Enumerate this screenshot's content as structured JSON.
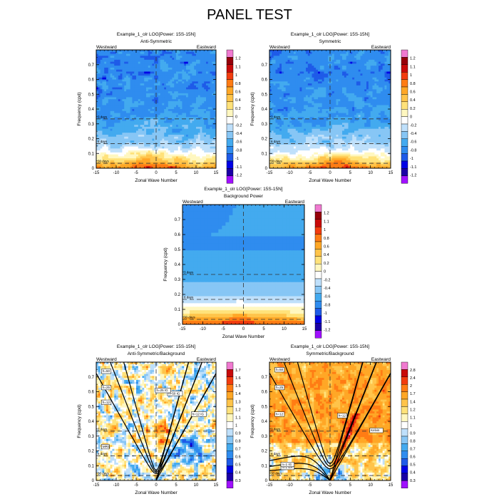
{
  "title": "PANEL TEST",
  "palettes": {
    "power": [
      "#a010ff",
      "#1a00a6",
      "#0000e6",
      "#1e5be8",
      "#2f8cef",
      "#43aaef",
      "#87c6f5",
      "#bfe0fb",
      "#ffffff",
      "#fff7c0",
      "#ffe27a",
      "#ffc44a",
      "#ffa726",
      "#ff7c14",
      "#f23c0f",
      "#c80a0a",
      "#96000a",
      "#f07ad0"
    ],
    "ratio1": [
      "#a010ff",
      "#1a00a6",
      "#0000e6",
      "#1e5be8",
      "#2f8cef",
      "#43aaef",
      "#87c6f5",
      "#bfe0fb",
      "#ffffff",
      "#fff7c0",
      "#ffe27a",
      "#ffc44a",
      "#ffa726",
      "#ff7c14",
      "#f23c0f",
      "#c80a0a",
      "#f07ad0"
    ],
    "ratio2": [
      "#a010ff",
      "#1a00a6",
      "#0000e6",
      "#1e5be8",
      "#2f8cef",
      "#43aaef",
      "#87c6f5",
      "#bfe0fb",
      "#ffffff",
      "#fff7c0",
      "#ffe27a",
      "#ffc44a",
      "#ffa726",
      "#ff7c14",
      "#f23c0f",
      "#c80a0a",
      "#f07ad0"
    ]
  },
  "chart_data": [
    {
      "type": "heatmap",
      "title": "Example_1_olr LOG[Power: 15S-15N]",
      "subtitle": "Anti-Symmetric",
      "left_label": "Westward",
      "right_label": "Eastward",
      "xlabel": "Zonal Wave Number",
      "ylabel": "Frequency (cpd)",
      "xlim": [
        -15,
        15
      ],
      "ylim": [
        0,
        0.8
      ],
      "xticks": [
        "-15",
        "-10",
        "-5",
        "0",
        "5",
        "10",
        "15"
      ],
      "yticks": [
        "0",
        "0.1",
        "0.2",
        "0.3",
        "0.4",
        "0.5",
        "0.6",
        "0.7"
      ],
      "period_labels": [
        "3 days",
        "6 days",
        "30 days"
      ],
      "colorbar": [
        "1.2",
        "1.1",
        "1",
        "0.8",
        "0.6",
        "0.4",
        "0.2",
        "0",
        "-0.2",
        "-0.4",
        "-0.6",
        "-0.8",
        "-1",
        "-1.1",
        "-1.2"
      ],
      "palette": "power",
      "dispersion_labels": []
    },
    {
      "type": "heatmap",
      "title": "Example_1_olr LOG[Power: 15S-15N]",
      "subtitle": "Symmetric",
      "left_label": "Westward",
      "right_label": "Eastward",
      "xlabel": "Zonal Wave Number",
      "ylabel": "Frequency (cpd)",
      "xlim": [
        -15,
        15
      ],
      "ylim": [
        0,
        0.8
      ],
      "xticks": [
        "-15",
        "-10",
        "-5",
        "0",
        "5",
        "10",
        "15"
      ],
      "yticks": [
        "0",
        "0.1",
        "0.2",
        "0.3",
        "0.4",
        "0.5",
        "0.6",
        "0.7"
      ],
      "period_labels": [
        "3 days",
        "6 days",
        "30 days"
      ],
      "colorbar": [
        "1.2",
        "1.1",
        "1",
        "0.8",
        "0.6",
        "0.4",
        "0.2",
        "0",
        "-0.2",
        "-0.4",
        "-0.6",
        "-0.8",
        "-1",
        "-1.1",
        "-1.2"
      ],
      "palette": "power",
      "dispersion_labels": []
    },
    {
      "type": "heatmap",
      "title": "Example_1_olr LOG[Power: 15S-15N]",
      "subtitle": "Background Power",
      "left_label": "Westward",
      "right_label": "Eastward",
      "xlabel": "Zonal Wave Number",
      "ylabel": "Frequency (cpd)",
      "xlim": [
        -15,
        15
      ],
      "ylim": [
        0,
        0.8
      ],
      "xticks": [
        "-15",
        "-10",
        "-5",
        "0",
        "5",
        "10",
        "15"
      ],
      "yticks": [
        "0",
        "0.1",
        "0.2",
        "0.3",
        "0.4",
        "0.5",
        "0.6",
        "0.7"
      ],
      "period_labels": [
        "3 days",
        "6 days",
        "30 days"
      ],
      "colorbar": [
        "1.2",
        "1.1",
        "1",
        "0.8",
        "0.6",
        "0.4",
        "0.2",
        "0",
        "-0.2",
        "-0.4",
        "-0.6",
        "-0.8",
        "-1",
        "-1.1",
        "-1.2"
      ],
      "palette": "power",
      "dispersion_labels": []
    },
    {
      "type": "heatmap",
      "title": "Example_1_olr LOG[Power: 15S-15N]",
      "subtitle": "Anti-Symmetric/Background",
      "left_label": "Westward",
      "right_label": "Eastward",
      "xlabel": "Zonal Wave Number",
      "ylabel": "Frequency (cpd)",
      "xlim": [
        -15,
        15
      ],
      "ylim": [
        0,
        0.8
      ],
      "xticks": [
        "-15",
        "-10",
        "-5",
        "0",
        "5",
        "10",
        "15"
      ],
      "yticks": [
        "0",
        "0.1",
        "0.2",
        "0.3",
        "0.4",
        "0.5",
        "0.6",
        "0.7"
      ],
      "period_labels": [
        "3 days",
        "6 days",
        "30 days"
      ],
      "colorbar": [
        "1.7",
        "1.6",
        "1.5",
        "1.4",
        "1.3",
        "1.2",
        "1.1",
        "1",
        "0.9",
        "0.8",
        "0.7",
        "0.6",
        "0.5",
        "0.4",
        "0.3"
      ],
      "palette": "ratio1",
      "dispersion_labels": [
        "h=50",
        "h=25",
        "h=12",
        "h=50 IG",
        "h=25 IG",
        "h=12 IG",
        "MRG"
      ]
    },
    {
      "type": "heatmap",
      "title": "Example_1_olr LOG[Power: 15S-15N]",
      "subtitle": "Symmetric/Background",
      "left_label": "Westward",
      "right_label": "Eastward",
      "xlabel": "Zonal Wave Number",
      "ylabel": "Frequency (cpd)",
      "xlim": [
        -15,
        15
      ],
      "ylim": [
        0,
        0.8
      ],
      "xticks": [
        "-15",
        "-10",
        "-5",
        "0",
        "5",
        "10",
        "15"
      ],
      "yticks": [
        "0",
        "0.1",
        "0.2",
        "0.3",
        "0.4",
        "0.5",
        "0.6",
        "0.7"
      ],
      "period_labels": [
        "3 days",
        "6 days",
        "30 days"
      ],
      "colorbar": [
        "2.8",
        "2.4",
        "2",
        "1.7",
        "1.4",
        "1.2",
        "1.1",
        "1",
        "0.9",
        "0.8",
        "0.7",
        "0.6",
        "0.5",
        "0.4",
        "0.3"
      ],
      "palette": "ratio2",
      "dispersion_labels": [
        "h=50",
        "h=25",
        "h=12",
        "n=1 ER",
        "h=12",
        "Kelvin",
        "n=1 IG"
      ]
    }
  ]
}
